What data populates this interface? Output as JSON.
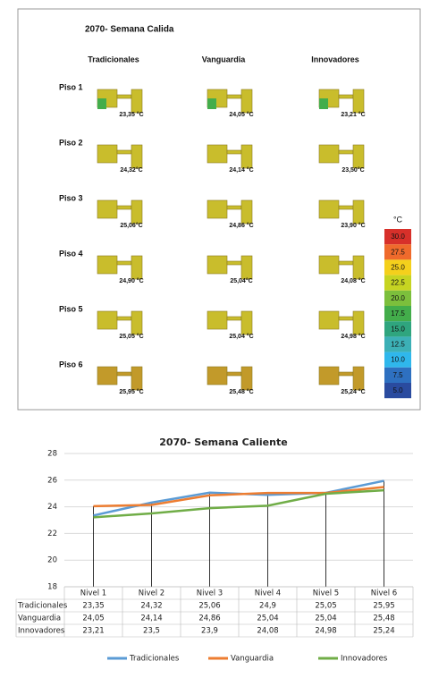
{
  "thermal_panel": {
    "title": "2070- Semana Calida",
    "columns": [
      "Tradicionales",
      "Vanguardia",
      "Innovadores"
    ],
    "rows": [
      {
        "label": "Piso 1",
        "values": [
          "23,35 °C",
          "24,05 °C",
          "23,21 °C"
        ]
      },
      {
        "label": "Piso 2",
        "values": [
          "24,32°C",
          "24,14 °C",
          "23,50°C"
        ]
      },
      {
        "label": "Piso 3",
        "values": [
          "25,06°C",
          "24,86 °C",
          "23,90 °C"
        ]
      },
      {
        "label": "Piso 4",
        "values": [
          "24,90 °C",
          "25,04°C",
          "24,08 °C"
        ]
      },
      {
        "label": "Piso 5",
        "values": [
          "25,05 °C",
          "25,04 °C",
          "24,98 °C"
        ]
      },
      {
        "label": "Piso 6",
        "values": [
          "25,95 °C",
          "25,48 °C",
          "25,24 °C"
        ]
      }
    ],
    "scale": {
      "unit": "°C",
      "steps": [
        {
          "label": "30.0",
          "color": "#d7302a"
        },
        {
          "label": "27.5",
          "color": "#ef6a2c"
        },
        {
          "label": "25.0",
          "color": "#f4d01c"
        },
        {
          "label": "22.5",
          "color": "#c6d422"
        },
        {
          "label": "20.0",
          "color": "#7cbf3c"
        },
        {
          "label": "17.5",
          "color": "#43ad4b"
        },
        {
          "label": "15.0",
          "color": "#2fa57e"
        },
        {
          "label": "12.5",
          "color": "#3cb0b6"
        },
        {
          "label": "10.0",
          "color": "#2fb7ec"
        },
        {
          "label": "7.5",
          "color": "#2e70c0"
        },
        {
          "label": "5.0",
          "color": "#2a4b9f"
        }
      ]
    }
  },
  "chart_data": {
    "type": "line",
    "title": "2070- Semana Caliente",
    "categories": [
      "Nivel 1",
      "Nivel 2",
      "Nivel 3",
      "Nivel 4",
      "Nivel 5",
      "Nivel 6"
    ],
    "series": [
      {
        "name": "Tradicionales",
        "color": "#5b9bd5",
        "values": [
          23.35,
          24.32,
          25.06,
          24.9,
          25.05,
          25.95
        ],
        "value_labels": [
          "23,35",
          "24,32",
          "25,06",
          "24,9",
          "25,05",
          "25,95"
        ]
      },
      {
        "name": "Vanguardia",
        "color": "#ed7d31",
        "values": [
          24.05,
          24.14,
          24.86,
          25.04,
          25.04,
          25.48
        ],
        "value_labels": [
          "24,05",
          "24,14",
          "24,86",
          "25,04",
          "25,04",
          "25,48"
        ]
      },
      {
        "name": "Innovadores",
        "color": "#70ad47",
        "values": [
          23.21,
          23.5,
          23.9,
          24.08,
          24.98,
          25.24
        ],
        "value_labels": [
          "23,21",
          "23,5",
          "23,9",
          "24,08",
          "24,98",
          "25,24"
        ]
      }
    ],
    "ylim": [
      18,
      28
    ],
    "yticks": [
      18,
      20,
      22,
      24,
      26,
      28
    ],
    "grid": true,
    "legend": "bottom"
  }
}
